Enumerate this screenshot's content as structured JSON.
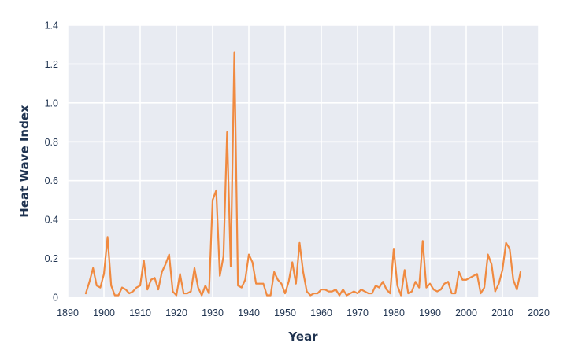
{
  "chart_data": {
    "type": "line",
    "xlabel": "Year",
    "ylabel": "Heat Wave Index",
    "xlim": [
      1890,
      2020
    ],
    "ylim": [
      0,
      1.4
    ],
    "x_ticks": [
      1890,
      1900,
      1910,
      1920,
      1930,
      1940,
      1950,
      1960,
      1970,
      1980,
      1990,
      2000,
      2010,
      2020
    ],
    "y_ticks": [
      "0",
      "0.2",
      "0.4",
      "0.6",
      "0.8",
      "1.0",
      "1.2",
      "1.4"
    ],
    "grid": "on",
    "plot_background": "#e8ebf2",
    "line_color": "#f08a40",
    "text_color": "#1f3350",
    "series": [
      {
        "x": [
          1895,
          1896,
          1897,
          1898,
          1899,
          1900,
          1901,
          1902,
          1903,
          1904,
          1905,
          1906,
          1907,
          1908,
          1909,
          1910,
          1911,
          1912,
          1913,
          1914,
          1915,
          1916,
          1917,
          1918,
          1919,
          1920,
          1921,
          1922,
          1923,
          1924,
          1925,
          1926,
          1927,
          1928,
          1929,
          1930,
          1931,
          1932,
          1933,
          1934,
          1935,
          1936,
          1937,
          1938,
          1939,
          1940,
          1941,
          1942,
          1943,
          1944,
          1945,
          1946,
          1947,
          1948,
          1949,
          1950,
          1951,
          1952,
          1953,
          1954,
          1955,
          1956,
          1957,
          1958,
          1959,
          1960,
          1961,
          1962,
          1963,
          1964,
          1965,
          1966,
          1967,
          1968,
          1969,
          1970,
          1971,
          1972,
          1973,
          1974,
          1975,
          1976,
          1977,
          1978,
          1979,
          1980,
          1981,
          1982,
          1983,
          1984,
          1985,
          1986,
          1987,
          1988,
          1989,
          1990,
          1991,
          1992,
          1993,
          1994,
          1995,
          1996,
          1997,
          1998,
          1999,
          2000,
          2001,
          2002,
          2003,
          2004,
          2005,
          2006,
          2007,
          2008,
          2009,
          2010,
          2011,
          2012,
          2013,
          2014,
          2015
        ],
        "values": [
          0.02,
          0.08,
          0.15,
          0.06,
          0.05,
          0.12,
          0.31,
          0.06,
          0.01,
          0.01,
          0.05,
          0.04,
          0.02,
          0.03,
          0.05,
          0.06,
          0.19,
          0.04,
          0.09,
          0.1,
          0.04,
          0.13,
          0.17,
          0.22,
          0.03,
          0.01,
          0.12,
          0.02,
          0.02,
          0.03,
          0.15,
          0.05,
          0.01,
          0.06,
          0.02,
          0.5,
          0.55,
          0.11,
          0.21,
          0.85,
          0.16,
          1.26,
          0.06,
          0.05,
          0.09,
          0.22,
          0.18,
          0.07,
          0.07,
          0.07,
          0.01,
          0.01,
          0.13,
          0.09,
          0.07,
          0.02,
          0.08,
          0.18,
          0.07,
          0.28,
          0.13,
          0.03,
          0.01,
          0.02,
          0.02,
          0.04,
          0.04,
          0.03,
          0.03,
          0.04,
          0.01,
          0.04,
          0.01,
          0.02,
          0.03,
          0.02,
          0.04,
          0.03,
          0.02,
          0.02,
          0.06,
          0.05,
          0.08,
          0.04,
          0.02,
          0.25,
          0.06,
          0.01,
          0.14,
          0.02,
          0.03,
          0.08,
          0.05,
          0.29,
          0.05,
          0.07,
          0.04,
          0.03,
          0.04,
          0.07,
          0.08,
          0.02,
          0.02,
          0.13,
          0.09,
          0.09,
          0.1,
          0.11,
          0.12,
          0.02,
          0.05,
          0.22,
          0.17,
          0.03,
          0.07,
          0.14,
          0.28,
          0.25,
          0.09,
          0.04,
          0.13
        ]
      }
    ]
  }
}
